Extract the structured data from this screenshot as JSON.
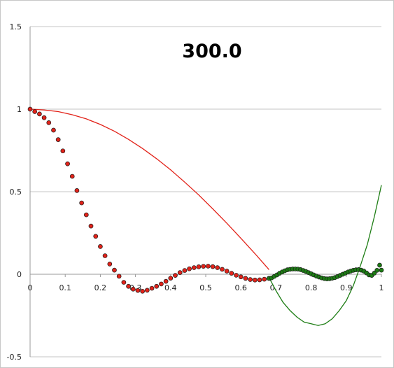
{
  "chart_data": {
    "type": "scatter",
    "title": "300.0",
    "xlim": [
      0,
      1
    ],
    "ylim": [
      -0.5,
      1.5
    ],
    "x_ticks": [
      "0",
      "0.1",
      "0.2",
      "0.3",
      "0.4",
      "0.5",
      "0.6",
      "0.7",
      "0.8",
      "0.9",
      "1"
    ],
    "y_ticks": [
      "-0.5",
      "0",
      "0.5",
      "1",
      "1.5"
    ],
    "grid": {
      "horizontal": true,
      "vertical": false
    },
    "series": [
      {
        "kind": "line",
        "color": "#e2231a",
        "x": [
          0,
          0.04,
          0.08,
          0.12,
          0.16,
          0.2,
          0.24,
          0.28,
          0.32,
          0.36,
          0.4,
          0.44,
          0.48,
          0.52,
          0.56,
          0.6,
          0.64,
          0.68
        ],
        "y": [
          1.0,
          0.995,
          0.985,
          0.966,
          0.941,
          0.907,
          0.866,
          0.817,
          0.762,
          0.7,
          0.632,
          0.558,
          0.48,
          0.396,
          0.309,
          0.218,
          0.125,
          0.028
        ]
      },
      {
        "kind": "line",
        "color": "#1d7d14",
        "x": [
          0.68,
          0.7,
          0.72,
          0.74,
          0.76,
          0.78,
          0.8,
          0.82,
          0.84,
          0.86,
          0.88,
          0.9,
          0.92,
          0.94,
          0.96,
          0.98,
          1.0
        ],
        "y": [
          -0.02,
          -0.1,
          -0.17,
          -0.22,
          -0.26,
          -0.29,
          -0.3,
          -0.31,
          -0.3,
          -0.27,
          -0.22,
          -0.16,
          -0.07,
          0.05,
          0.18,
          0.35,
          0.54
        ]
      },
      {
        "kind": "points",
        "color": "#e2231a",
        "x": [
          0.0,
          0.0133,
          0.0267,
          0.04,
          0.0533,
          0.0667,
          0.08,
          0.0933,
          0.1067,
          0.12,
          0.1333,
          0.1467,
          0.16,
          0.1733,
          0.1867,
          0.2,
          0.2133,
          0.2267,
          0.24,
          0.2533,
          0.2667,
          0.28,
          0.2933,
          0.3067,
          0.32,
          0.3333,
          0.3467,
          0.36,
          0.3733,
          0.3867,
          0.4,
          0.4133,
          0.4267,
          0.44,
          0.4533,
          0.4667,
          0.48,
          0.4933,
          0.5067,
          0.52,
          0.5333,
          0.5467,
          0.56,
          0.5733,
          0.5867,
          0.6,
          0.6133,
          0.6267,
          0.64,
          0.6533,
          0.6667,
          0.68
        ],
        "y": [
          1.0,
          0.985,
          0.971,
          0.948,
          0.918,
          0.873,
          0.815,
          0.747,
          0.669,
          0.593,
          0.507,
          0.432,
          0.36,
          0.292,
          0.23,
          0.168,
          0.112,
          0.062,
          0.025,
          -0.012,
          -0.049,
          -0.073,
          -0.09,
          -0.098,
          -0.103,
          -0.097,
          -0.085,
          -0.073,
          -0.059,
          -0.043,
          -0.024,
          -0.007,
          0.01,
          0.023,
          0.033,
          0.04,
          0.045,
          0.048,
          0.049,
          0.046,
          0.04,
          0.03,
          0.019,
          0.006,
          -0.006,
          -0.016,
          -0.025,
          -0.032,
          -0.035,
          -0.034,
          -0.03,
          -0.025
        ]
      },
      {
        "kind": "points",
        "color": "#1d7d14",
        "x": [
          0.68,
          0.6875,
          0.695,
          0.7025,
          0.71,
          0.7175,
          0.725,
          0.7325,
          0.74,
          0.7475,
          0.755,
          0.7625,
          0.77,
          0.7775,
          0.785,
          0.7925,
          0.8,
          0.8075,
          0.815,
          0.8225,
          0.83,
          0.8375,
          0.845,
          0.8525,
          0.86,
          0.8675,
          0.875,
          0.8825,
          0.89,
          0.8975,
          0.905,
          0.9125,
          0.92,
          0.9275,
          0.935,
          0.9425,
          0.95,
          0.9575,
          0.965,
          0.9725,
          0.98,
          0.9875,
          0.995,
          1.0
        ],
        "y": [
          -0.025,
          -0.022,
          -0.013,
          -0.004,
          0.006,
          0.014,
          0.021,
          0.027,
          0.03,
          0.032,
          0.032,
          0.031,
          0.028,
          0.023,
          0.017,
          0.01,
          0.003,
          -0.004,
          -0.011,
          -0.017,
          -0.022,
          -0.026,
          -0.028,
          -0.027,
          -0.024,
          -0.02,
          -0.014,
          -0.007,
          0.0,
          0.007,
          0.014,
          0.019,
          0.024,
          0.027,
          0.028,
          0.025,
          0.019,
          0.008,
          -0.004,
          -0.007,
          0.007,
          0.024,
          0.055,
          0.025
        ]
      }
    ]
  }
}
